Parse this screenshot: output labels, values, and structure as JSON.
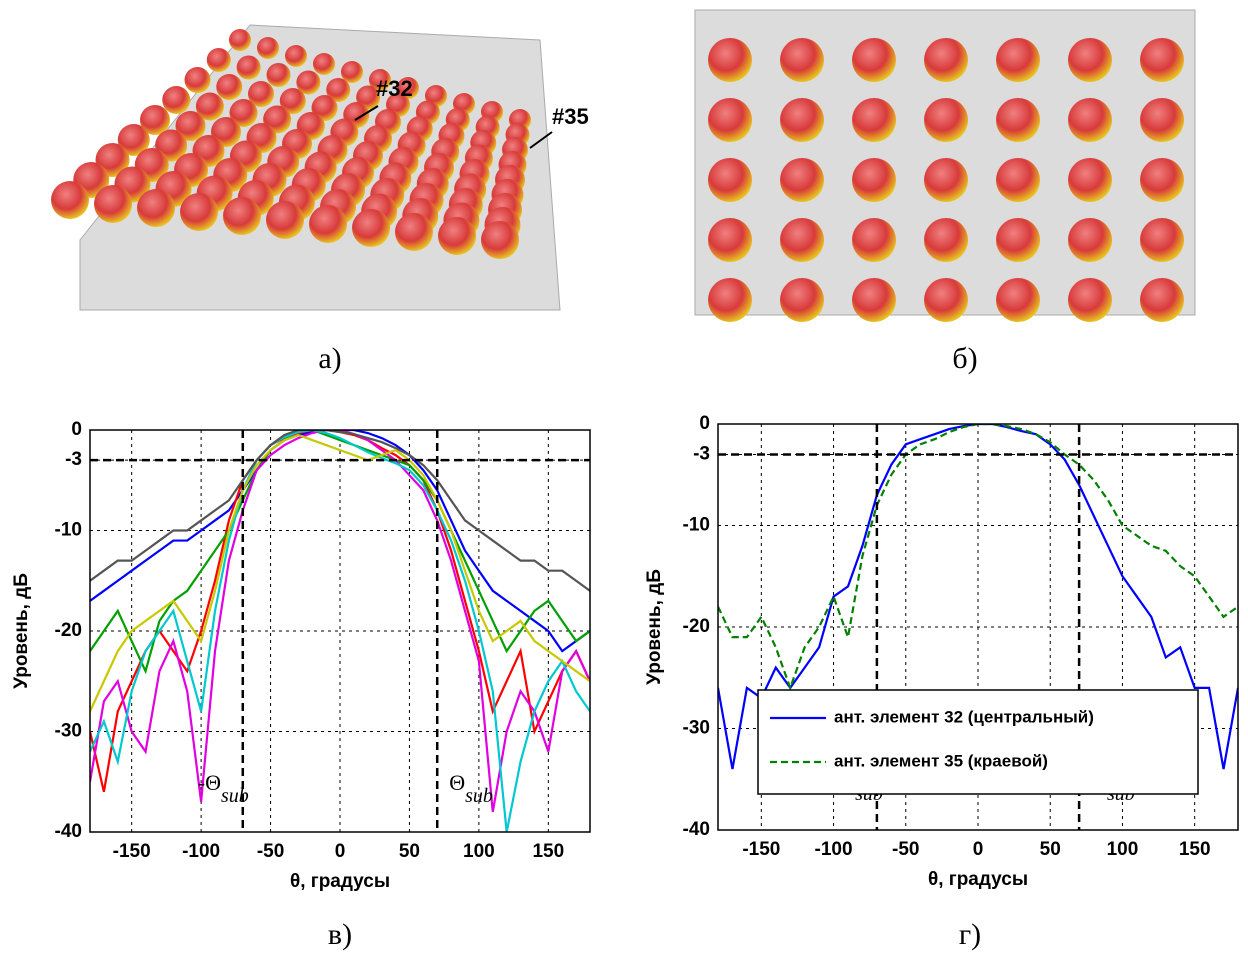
{
  "figures": [
    {
      "caption": "а)",
      "annotations": [
        "#32",
        "#35"
      ]
    },
    {
      "caption": "б)"
    }
  ],
  "chart_data": [
    {
      "type": "line",
      "caption": "в)",
      "ylabel": "Уровень, дБ",
      "xlabel": "θ, градусы",
      "x": [
        -180,
        -170,
        -160,
        -150,
        -140,
        -130,
        -120,
        -110,
        -100,
        -90,
        -80,
        -70,
        -60,
        -50,
        -40,
        -30,
        -20,
        -10,
        0,
        10,
        20,
        30,
        40,
        50,
        60,
        70,
        80,
        90,
        100,
        110,
        120,
        130,
        140,
        150,
        160,
        170,
        180
      ],
      "series": [
        {
          "color": "#0000ff",
          "values": [
            -17,
            -16,
            -15,
            -14,
            -13,
            -12,
            -11,
            -11,
            -10,
            -9,
            -8,
            -6,
            -4,
            -2,
            -1,
            -0.5,
            -0.2,
            0,
            0,
            0,
            -0.3,
            -0.8,
            -1.5,
            -2.5,
            -4,
            -6,
            -9,
            -12,
            -14,
            -16,
            -17,
            -18,
            -19,
            -20,
            -22,
            -21,
            -20
          ]
        },
        {
          "color": "#ff0000",
          "values": [
            -30,
            -36,
            -28,
            -25,
            -22,
            -20,
            -22,
            -24,
            -20,
            -15,
            -9,
            -5,
            -3,
            -1.5,
            -0.8,
            -0.3,
            0,
            0,
            -0.2,
            -0.5,
            -1,
            -1.8,
            -2.5,
            -3.5,
            -5,
            -8,
            -12,
            -17,
            -22,
            -28,
            -25,
            -22,
            -30,
            -27,
            -24,
            -22,
            -25
          ]
        },
        {
          "color": "#00a000",
          "values": [
            -22,
            -20,
            -18,
            -21,
            -24,
            -19,
            -17,
            -16,
            -14,
            -12,
            -10,
            -7,
            -4,
            -2,
            -1,
            0,
            0,
            -0.5,
            -1,
            -1.5,
            -2,
            -2.5,
            -3,
            -3.5,
            -5,
            -7,
            -10,
            -13,
            -16,
            -19,
            -22,
            -20,
            -18,
            -17,
            -19,
            -21,
            -20
          ]
        },
        {
          "color": "#e000e0",
          "values": [
            -35,
            -27,
            -25,
            -30,
            -32,
            -24,
            -21,
            -26,
            -37,
            -22,
            -13,
            -8,
            -4,
            -2.5,
            -1.5,
            -0.8,
            -0.3,
            0,
            0,
            -0.4,
            -1,
            -2,
            -3,
            -4.5,
            -6,
            -9,
            -13,
            -18,
            -23,
            -38,
            -30,
            -26,
            -28,
            -32,
            -24,
            -22,
            -25
          ]
        },
        {
          "color": "#00c8d0",
          "values": [
            -32,
            -29,
            -33,
            -26,
            -22,
            -20,
            -18,
            -23,
            -28,
            -18,
            -11,
            -6,
            -3,
            -1.5,
            -0.7,
            -0.2,
            0,
            -0.3,
            -0.8,
            -1.5,
            -2.2,
            -2.8,
            -3.3,
            -4,
            -5.5,
            -8,
            -11,
            -15,
            -20,
            -26,
            -40,
            -33,
            -28,
            -25,
            -23,
            -26,
            -28
          ]
        },
        {
          "color": "#555555",
          "values": [
            -15,
            -14,
            -13,
            -13,
            -12,
            -11,
            -10,
            -10,
            -9,
            -8,
            -7,
            -5,
            -3,
            -1.5,
            -0.5,
            0,
            0,
            0,
            -0.2,
            -0.4,
            -0.8,
            -1.2,
            -1.8,
            -2.5,
            -3.5,
            -5,
            -7,
            -9,
            -10,
            -11,
            -12,
            -13,
            -13,
            -14,
            -14,
            -15,
            -16
          ]
        },
        {
          "color": "#c8c800",
          "values": [
            -28,
            -25,
            -22,
            -20,
            -19,
            -18,
            -17,
            -19,
            -21,
            -16,
            -10,
            -6,
            -3.5,
            -2,
            -1,
            -0.5,
            -1,
            -1.5,
            -2,
            -2.5,
            -3,
            -2.5,
            -2,
            -3,
            -4.5,
            -7,
            -10,
            -14,
            -18,
            -21,
            -20,
            -19,
            -21,
            -22,
            -23,
            -24,
            -25
          ]
        }
      ],
      "xlim": [
        -180,
        180
      ],
      "xticks": [
        -150,
        -100,
        -50,
        0,
        50,
        100,
        150
      ],
      "ylim": [
        -40,
        0
      ],
      "yticks": [
        -40,
        -30,
        -20,
        -10,
        -3,
        0
      ],
      "grid": true,
      "vlines": [
        -70,
        70
      ],
      "hline": -3,
      "annotations": [
        {
          "text": "-Θ",
          "sub": "sub"
        },
        {
          "text": "Θ",
          "sub": "sub"
        }
      ]
    },
    {
      "type": "line",
      "caption": "г)",
      "ylabel": "Уровень, дБ",
      "xlabel": "θ, градусы",
      "x": [
        -180,
        -170,
        -160,
        -150,
        -140,
        -130,
        -120,
        -110,
        -100,
        -90,
        -80,
        -70,
        -60,
        -50,
        -40,
        -30,
        -20,
        -10,
        0,
        10,
        20,
        30,
        40,
        50,
        60,
        70,
        80,
        90,
        100,
        110,
        120,
        130,
        140,
        150,
        160,
        170,
        180
      ],
      "series": [
        {
          "name": "ант. элемент 32 (центральный)",
          "color": "#0000ff",
          "style": "solid",
          "values": [
            -26,
            -34,
            -26,
            -27,
            -24,
            -26,
            -24,
            -22,
            -17,
            -16,
            -12,
            -7,
            -4,
            -2,
            -1.5,
            -1,
            -0.5,
            -0.2,
            0,
            0,
            -0.3,
            -0.7,
            -1,
            -2,
            -3.5,
            -6,
            -9,
            -12,
            -15,
            -17,
            -19,
            -23,
            -22,
            -26,
            -26,
            -34,
            -26
          ]
        },
        {
          "name": "ант. элемент 35 (краевой)",
          "color": "#008000",
          "style": "dashed",
          "values": [
            -18,
            -21,
            -21,
            -19,
            -22,
            -26,
            -22,
            -20,
            -17,
            -21,
            -13,
            -8,
            -5,
            -3,
            -2,
            -1.5,
            -0.8,
            -0.3,
            0,
            0,
            -0.2,
            -0.5,
            -1,
            -1.8,
            -3,
            -4,
            -5.5,
            -7.5,
            -10,
            -11,
            -12,
            -12.5,
            -14,
            -15,
            -17,
            -19,
            -18
          ]
        }
      ],
      "xlim": [
        -180,
        180
      ],
      "xticks": [
        -150,
        -100,
        -50,
        0,
        50,
        100,
        150
      ],
      "ylim": [
        -40,
        0
      ],
      "yticks": [
        -40,
        -30,
        -20,
        -10,
        -3,
        0
      ],
      "grid": true,
      "vlines": [
        -70,
        70
      ],
      "hline": -3,
      "legend": "lower left",
      "annotations": [
        {
          "text": "-Θ",
          "sub": "sub"
        },
        {
          "text": "Θ",
          "sub": "sub"
        }
      ]
    }
  ]
}
